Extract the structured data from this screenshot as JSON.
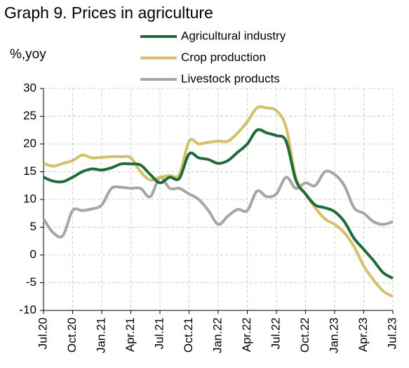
{
  "chart_data": {
    "type": "line",
    "title": "Graph 9. Prices in agriculture",
    "y_label": "%,yoy",
    "categories": [
      "Jul.20",
      null,
      null,
      "Oct.20",
      null,
      null,
      "Jan.21",
      null,
      null,
      "Apr.21",
      null,
      null,
      "Jul.21",
      null,
      null,
      "Oct.21",
      null,
      null,
      "Jan.22",
      null,
      null,
      "Apr.22",
      null,
      null,
      "Jul.22",
      null,
      null,
      "Oct.22",
      null,
      null,
      "Jan.23",
      null,
      null,
      "Apr.23",
      null,
      null,
      "Jul.23"
    ],
    "series": [
      {
        "name": "Agricultural industry",
        "color": "#1f6b3a",
        "values": [
          14,
          13.3,
          13.2,
          14,
          15,
          15.5,
          15.3,
          15.7,
          16.4,
          16.4,
          16.2,
          14.5,
          13,
          14,
          13.8,
          18.2,
          17.5,
          17.2,
          16.5,
          17,
          18.5,
          20,
          22.5,
          22,
          21.5,
          20.5,
          13.5,
          11,
          9,
          8.5,
          7.8,
          6,
          3,
          1,
          -1,
          -3.2,
          -4.2
        ]
      },
      {
        "name": "Crop production",
        "color": "#d4c06a",
        "values": [
          16.5,
          16,
          16.5,
          17,
          18,
          17.5,
          17.6,
          17.7,
          17.7,
          17.5,
          15,
          13.5,
          14,
          14.3,
          14.5,
          20.5,
          20,
          20.3,
          20.5,
          20.5,
          22,
          24,
          26.5,
          26.5,
          26,
          23,
          14,
          11,
          8.5,
          6.5,
          5.5,
          4,
          1.5,
          -2,
          -4.5,
          -6.5,
          -7.5
        ]
      },
      {
        "name": "Livestock products",
        "color": "#a6a6a6",
        "values": [
          6.5,
          4,
          3.5,
          8,
          8,
          8.3,
          9,
          12,
          12.2,
          12,
          12,
          10.5,
          14,
          12,
          12,
          11,
          10,
          8,
          5.5,
          7,
          8.2,
          8,
          11.5,
          10.5,
          11,
          14,
          12,
          13,
          12.5,
          15,
          14.5,
          12.5,
          8.5,
          7.5,
          6,
          5.5,
          6
        ]
      }
    ],
    "ylim": [
      -10,
      30
    ],
    "yticks": [
      -10,
      -5,
      0,
      5,
      10,
      15,
      20,
      25,
      30
    ],
    "grid": true
  }
}
